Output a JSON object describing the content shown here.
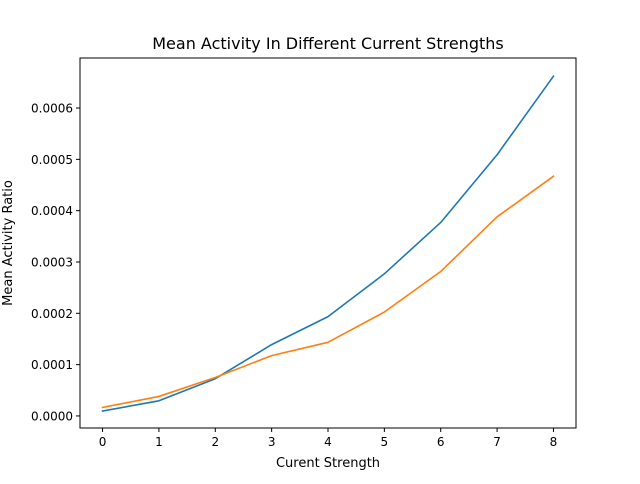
{
  "chart_data": {
    "type": "line",
    "title": "Mean Activity In Different Current Strengths",
    "xlabel": "Curent Strength",
    "ylabel": "Mean Activity Ratio",
    "x": [
      0,
      1,
      2,
      3,
      4,
      5,
      6,
      7,
      8
    ],
    "xlim": [
      -0.4,
      8.4
    ],
    "ylim": [
      -2.35e-05,
      0.0006975
    ],
    "x_ticks": [
      0,
      1,
      2,
      3,
      4,
      5,
      6,
      7,
      8
    ],
    "x_tick_labels": [
      "0",
      "1",
      "2",
      "3",
      "4",
      "5",
      "6",
      "7",
      "8"
    ],
    "y_ticks": [
      0.0,
      0.0001,
      0.0002,
      0.0003,
      0.0004,
      0.0005,
      0.0006
    ],
    "y_tick_labels": [
      "0.0000",
      "0.0001",
      "0.0002",
      "0.0003",
      "0.0004",
      "0.0005",
      "0.0006"
    ],
    "grid": false,
    "series": [
      {
        "color": "#1f77b4",
        "values": [
          9.5e-06,
          2.95e-05,
          7.25e-05,
          0.000139,
          0.0001935,
          0.000277,
          0.000377,
          0.000509,
          0.000662
        ]
      },
      {
        "color": "#ff7f0e",
        "values": [
          1.65e-05,
          3.8e-05,
          7.5e-05,
          0.0001175,
          0.0001435,
          0.0002025,
          0.0002815,
          0.000388,
          0.000467
        ]
      }
    ]
  }
}
